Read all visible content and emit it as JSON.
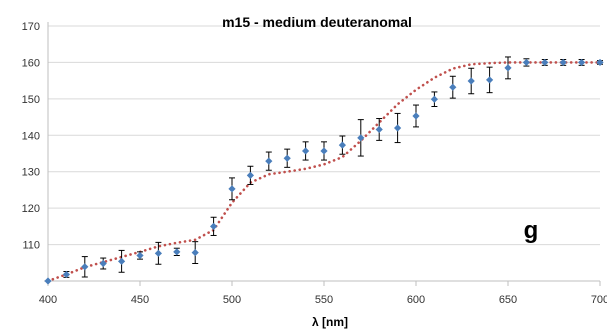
{
  "chart_data": {
    "type": "scatter",
    "title": "m15 - medium deuteranomal",
    "xlabel": "λ [nm]",
    "ylabel": "",
    "annotation": "g",
    "xlim": [
      400,
      700
    ],
    "ylim": [
      100,
      170
    ],
    "x_ticks": [
      400,
      450,
      500,
      550,
      600,
      650,
      700
    ],
    "y_ticks": [
      110,
      120,
      130,
      140,
      150,
      160,
      170
    ],
    "grid": "horizontal",
    "colors": {
      "points": "#4a7ebb",
      "fit": "#c0504d",
      "errorbars": "#000000",
      "grid": "#d9d9d9"
    },
    "series": [
      {
        "kind": "points-with-error",
        "x": [
          400,
          410,
          420,
          430,
          440,
          450,
          460,
          470,
          480,
          490,
          500,
          510,
          520,
          530,
          540,
          550,
          560,
          570,
          580,
          590,
          600,
          610,
          620,
          630,
          640,
          650,
          660,
          670,
          680,
          690,
          700
        ],
        "y": [
          100,
          101.8,
          103.9,
          104.8,
          105.4,
          107,
          107.6,
          108,
          107.8,
          115,
          125.3,
          129,
          132.9,
          133.7,
          135.7,
          135.7,
          137.3,
          139.3,
          141.6,
          142,
          145.3,
          149.9,
          153.2,
          154.9,
          155.2,
          158.5,
          160,
          160,
          160,
          160,
          160
        ],
        "err": [
          0,
          0.8,
          2.8,
          1.5,
          3,
          1,
          3,
          1,
          3,
          2.5,
          3,
          2.5,
          2.5,
          2.5,
          2.5,
          2.5,
          2.5,
          5,
          3,
          4,
          3,
          2,
          3,
          3.5,
          3.5,
          3,
          1,
          0.8,
          0.8,
          0.8,
          0.5
        ]
      },
      {
        "kind": "fit-dotted",
        "x": [
          400,
          410,
          420,
          430,
          440,
          450,
          460,
          470,
          480,
          490,
          500,
          510,
          520,
          530,
          540,
          550,
          560,
          570,
          580,
          590,
          600,
          610,
          620,
          630,
          640,
          650,
          660,
          670,
          680,
          690,
          700
        ],
        "y": [
          100,
          101.8,
          103.8,
          105.2,
          106.6,
          108,
          109.5,
          110.5,
          111.3,
          114,
          121.5,
          127,
          129.3,
          130,
          130.8,
          132,
          134,
          138.5,
          143.5,
          148.5,
          152.5,
          155.8,
          158.3,
          159.5,
          159.8,
          160,
          160,
          160,
          160,
          160,
          160
        ]
      }
    ]
  }
}
